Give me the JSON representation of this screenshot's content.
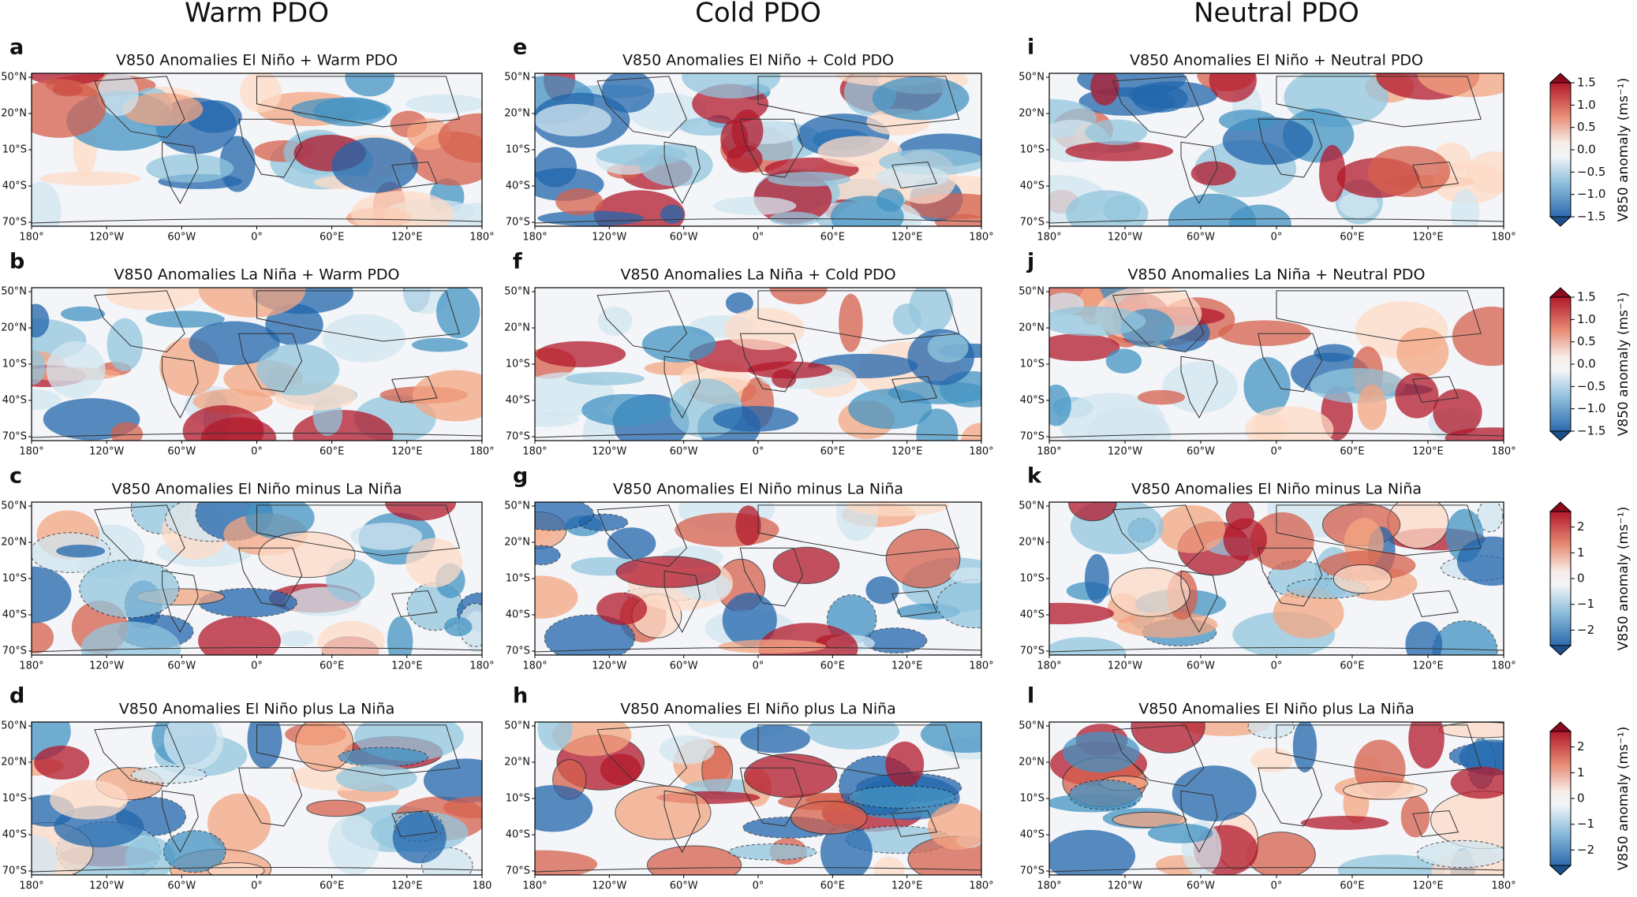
{
  "columns": [
    "Warm PDO",
    "Cold PDO",
    "Neutral PDO"
  ],
  "lat_labels": [
    "50°N",
    "20°N",
    "10°S",
    "40°S",
    "70°S"
  ],
  "panels": [
    {
      "letter": "a",
      "title": "V850 Anomalies El Niño + Warm PDO",
      "lon_labels": [
        "180°",
        "120°W",
        "60°W",
        "0°",
        "60°E",
        "120°E",
        "180°"
      ]
    },
    {
      "letter": "e",
      "title": "V850 Anomalies El Niño + Cold PDO",
      "lon_labels": [
        "180°",
        "120°W",
        "60°W",
        "0°",
        "60°E",
        "120°E",
        "180°"
      ]
    },
    {
      "letter": "i",
      "title": "V850 Anomalies El Niño + Neutral PDO",
      "lon_labels": [
        "180°",
        "120°W",
        "60°W",
        "0°",
        "60°E",
        "120°E",
        "180°"
      ]
    },
    {
      "letter": "b",
      "title": "V850 Anomalies La Niña + Warm PDO",
      "lon_labels": [
        "180°",
        "120°W",
        "60°W",
        "0°",
        "60°E",
        "120°E",
        "180°"
      ]
    },
    {
      "letter": "f",
      "title": "V850 Anomalies La Niña + Cold PDO",
      "lon_labels": [
        "180°",
        "120°W",
        "60°W",
        "0°",
        "60°E",
        "120°E",
        "180°"
      ]
    },
    {
      "letter": "j",
      "title": "V850 Anomalies La Niña + Neutral PDO",
      "lon_labels": [
        "180°",
        "120°W",
        "60°W",
        "0°",
        "60°E",
        "120°E",
        "180°"
      ]
    },
    {
      "letter": "c",
      "title": "V850 Anomalies El Niño minus La Niña",
      "lon_labels": [
        "180°",
        "120°W",
        "60°W",
        "0°",
        "60°E",
        "120°E",
        "180°"
      ]
    },
    {
      "letter": "g",
      "title": "V850 Anomalies El Niño minus La Niña",
      "lon_labels": [
        "180°",
        "120°W",
        "60°W",
        "0°",
        "60°E",
        "120°E",
        "180°"
      ]
    },
    {
      "letter": "k",
      "title": "V850 Anomalies El Niño minus La Niña",
      "lon_labels": [
        "180°",
        "120°W",
        "60°W",
        "0°",
        "60°E",
        "120°E",
        "180°"
      ]
    },
    {
      "letter": "d",
      "title": "V850 Anomalies El Niño plus La Niña",
      "lon_labels": [
        "180°",
        "120°W",
        "60°W",
        "0°",
        "60°E",
        "120°E",
        "180"
      ]
    },
    {
      "letter": "h",
      "title": "V850 Anomalies El Niño plus La Niña",
      "lon_labels": [
        "180°",
        "120°W",
        "60°W",
        "0°",
        "60°E",
        "120°E",
        "180°"
      ]
    },
    {
      "letter": "l",
      "title": "V850 Anomalies El Niño plus La Niña",
      "lon_labels": [
        "180°",
        "120°W",
        "60°W",
        "0°",
        "60°E",
        "120°E",
        "180°"
      ]
    }
  ],
  "colorbars": [
    {
      "label": "V850 anomaly (ms⁻¹)",
      "lim": [
        -1.5,
        1.5
      ],
      "ticks": [
        1.5,
        {
          "value": 1,
          "label": "1.0"
        },
        0.5,
        {
          "value": 0,
          "label": "0.0"
        },
        {
          "value": -0.5,
          "label": "−0.5"
        },
        {
          "value": -1,
          "label": "−1.0"
        },
        {
          "value": -1.5,
          "label": "−1.5"
        }
      ]
    },
    {
      "label": "V850 anomaly (ms⁻¹)",
      "lim": [
        -1.5,
        1.5
      ],
      "ticks": [
        1.5,
        {
          "value": 1,
          "label": "1.0"
        },
        0.5,
        {
          "value": 0,
          "label": "0.0"
        },
        {
          "value": -0.5,
          "label": "−0.5"
        },
        {
          "value": -1,
          "label": "−1.0"
        },
        {
          "value": -1.5,
          "label": "−1.5"
        }
      ]
    },
    {
      "label": "V850 anomaly (ms⁻¹)",
      "lim": [
        -2.6,
        2.6
      ],
      "ticks": [
        2,
        1,
        0,
        {
          "value": -1,
          "label": "−1"
        },
        {
          "value": -2,
          "label": "−2"
        }
      ]
    },
    {
      "label": "V850 anomaly (ms⁻¹)",
      "lim": [
        -2.6,
        2.6
      ],
      "ticks": [
        2,
        1,
        0,
        {
          "value": -1,
          "label": "−1"
        },
        {
          "value": -2,
          "label": "−2"
        }
      ]
    }
  ]
}
